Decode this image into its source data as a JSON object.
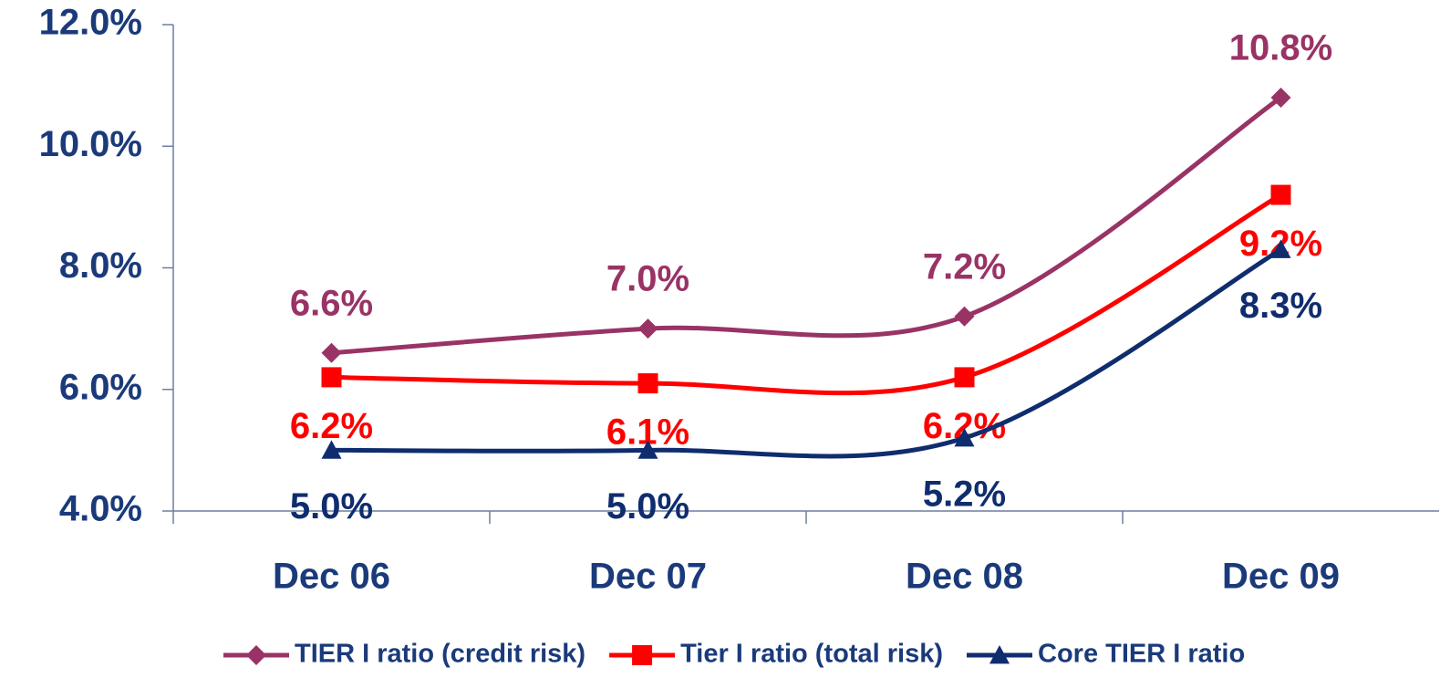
{
  "chart_data": {
    "type": "line",
    "categories": [
      "Dec 06",
      "Dec 07",
      "Dec 08",
      "Dec 09"
    ],
    "series": [
      {
        "name": "TIER I ratio (credit risk)",
        "color": "#993366",
        "marker": "diamond",
        "values": [
          6.6,
          7.0,
          7.2,
          10.8
        ],
        "value_labels": [
          "6.6%",
          "7.0%",
          "7.2%",
          "10.8%"
        ]
      },
      {
        "name": "Tier I ratio (total risk)",
        "color": "#ff0000",
        "marker": "square",
        "values": [
          6.2,
          6.1,
          6.2,
          9.2
        ],
        "value_labels": [
          "6.2%",
          "6.1%",
          "6.2%",
          "9.2%"
        ]
      },
      {
        "name": "Core TIER I ratio",
        "color": "#0f2d6e",
        "marker": "triangle",
        "values": [
          5.0,
          5.0,
          5.2,
          8.3
        ],
        "value_labels": [
          "5.0%",
          "5.0%",
          "5.2%",
          "8.3%"
        ]
      }
    ],
    "ylim": [
      4,
      12
    ],
    "yticks": [
      {
        "value": 4,
        "label": "4.0%"
      },
      {
        "value": 6,
        "label": "6.0%"
      },
      {
        "value": 8,
        "label": "8.0%"
      },
      {
        "value": 10,
        "label": "10.0%"
      },
      {
        "value": 12,
        "label": "12.0%"
      }
    ],
    "smooth": true,
    "legend": "bottom"
  }
}
